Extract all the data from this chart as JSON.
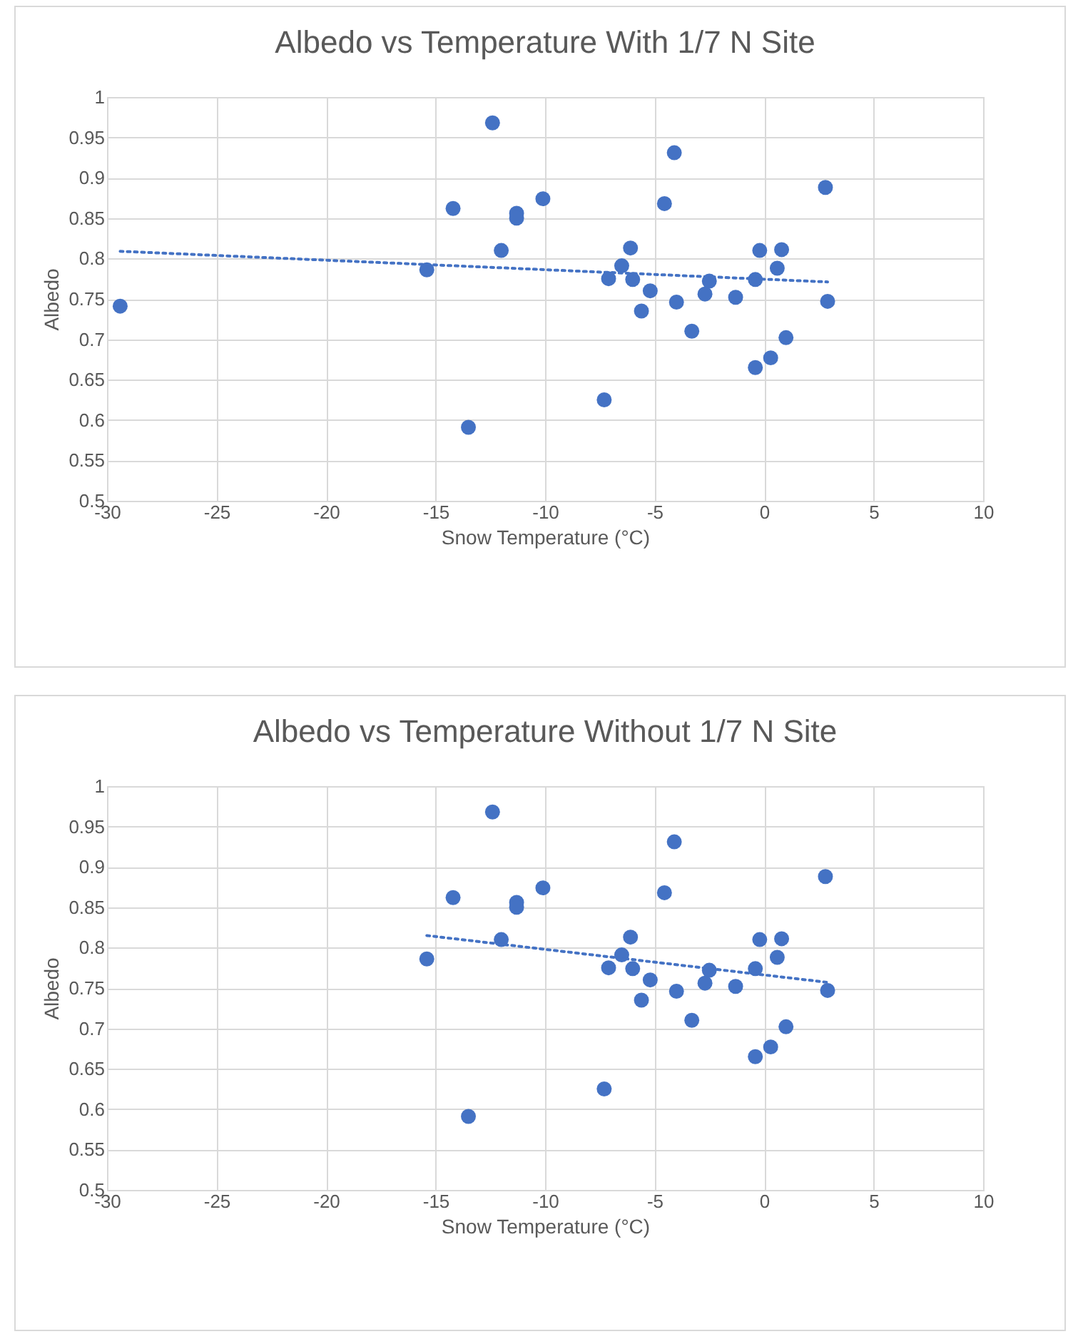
{
  "chart_data": [
    {
      "type": "scatter",
      "title": "Albedo vs Temperature With 1/7 N Site",
      "xlabel": "Snow Temperature (°C)",
      "ylabel": "Albedo",
      "xlim": [
        -30,
        10
      ],
      "xticks": [
        -30,
        -25,
        -20,
        -15,
        -10,
        -5,
        0,
        5,
        10
      ],
      "ylim": [
        0.5,
        1
      ],
      "yticks": [
        0.5,
        0.55,
        0.6,
        0.65,
        0.7,
        0.75,
        0.8,
        0.85,
        0.9,
        0.95,
        1
      ],
      "grid": true,
      "marker": "circle",
      "series": [
        {
          "color": "#4472c4",
          "x": [
            -29.4,
            -15.4,
            -14.2,
            -12.4,
            -10.1,
            -11.3,
            -11.3,
            -12.0,
            -13.5,
            -4.1,
            -4.55,
            -6.1,
            -6.5,
            -7.1,
            -6.0,
            -5.2,
            -5.6,
            -4.0,
            -3.3,
            -2.5,
            -2.7,
            -1.3,
            -0.4,
            -0.2,
            0.8,
            0.6,
            -0.4,
            0.3,
            1.0,
            2.8,
            2.9,
            -7.3
          ],
          "values": [
            0.741,
            0.786,
            0.862,
            0.968,
            0.874,
            0.856,
            0.85,
            0.81,
            0.591,
            0.931,
            0.868,
            0.813,
            0.791,
            0.775,
            0.774,
            0.76,
            0.735,
            0.746,
            0.71,
            0.772,
            0.756,
            0.752,
            0.774,
            0.81,
            0.811,
            0.788,
            0.665,
            0.677,
            0.702,
            0.888,
            0.747,
            0.625
          ]
        },
        {
          "type": "line",
          "marker": "none",
          "line_style": "dotted",
          "color": "#4472c4",
          "x": [
            -29.4,
            2.9
          ],
          "values": [
            0.809,
            0.771
          ]
        }
      ]
    },
    {
      "type": "scatter",
      "title": "Albedo vs Temperature Without 1/7 N Site",
      "xlabel": "Snow Temperature (°C)",
      "ylabel": "Albedo",
      "xlim": [
        -30,
        10
      ],
      "xticks": [
        -30,
        -25,
        -20,
        -15,
        -10,
        -5,
        0,
        5,
        10
      ],
      "ylim": [
        0.5,
        1
      ],
      "yticks": [
        0.5,
        0.55,
        0.6,
        0.65,
        0.7,
        0.75,
        0.8,
        0.85,
        0.9,
        0.95,
        1
      ],
      "grid": true,
      "marker": "circle",
      "series": [
        {
          "color": "#4472c4",
          "x": [
            -15.4,
            -14.2,
            -12.4,
            -10.1,
            -11.3,
            -11.3,
            -12.0,
            -13.5,
            -4.1,
            -4.55,
            -6.1,
            -6.5,
            -7.1,
            -6.0,
            -5.2,
            -5.6,
            -4.0,
            -3.3,
            -2.5,
            -2.7,
            -1.3,
            -0.4,
            -0.2,
            0.8,
            0.6,
            -0.4,
            0.3,
            1.0,
            2.8,
            2.9,
            -7.3
          ],
          "values": [
            0.786,
            0.862,
            0.968,
            0.874,
            0.856,
            0.85,
            0.81,
            0.591,
            0.931,
            0.868,
            0.813,
            0.791,
            0.775,
            0.774,
            0.76,
            0.735,
            0.746,
            0.71,
            0.772,
            0.756,
            0.752,
            0.774,
            0.81,
            0.811,
            0.788,
            0.665,
            0.677,
            0.702,
            0.888,
            0.747,
            0.625
          ]
        },
        {
          "type": "line",
          "marker": "none",
          "line_style": "dotted",
          "color": "#4472c4",
          "x": [
            -15.4,
            2.9
          ],
          "values": [
            0.815,
            0.757
          ]
        }
      ]
    }
  ]
}
